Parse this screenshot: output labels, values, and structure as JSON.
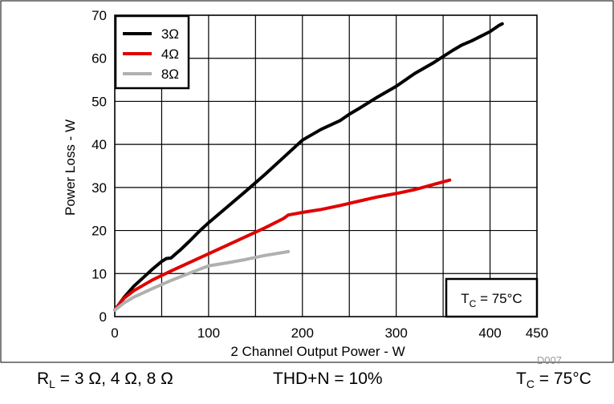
{
  "chart_data": {
    "type": "line",
    "title": "",
    "xlabel": "2 Channel Output Power - W",
    "ylabel": "Power Loss - W",
    "xlim": [
      0,
      450
    ],
    "ylim": [
      0,
      70
    ],
    "xticks": [
      0,
      100,
      200,
      300,
      400,
      450
    ],
    "yticks": [
      0,
      10,
      20,
      30,
      40,
      50,
      60,
      70
    ],
    "x_tick_labels": [
      "0",
      "100",
      "200",
      "300",
      "400",
      "450"
    ],
    "y_tick_labels": [
      "0",
      "10",
      "20",
      "30",
      "40",
      "50",
      "60",
      "70"
    ],
    "grid": true,
    "legend_position": "top-left",
    "series": [
      {
        "name": "3Ω",
        "color": "#000000",
        "x": [
          0,
          5,
          10,
          20,
          30,
          40,
          50,
          55,
          60,
          65,
          70,
          80,
          90,
          100,
          120,
          140,
          160,
          180,
          200,
          220,
          240,
          250,
          260,
          280,
          300,
          320,
          340,
          360,
          370,
          380,
          390,
          400,
          410,
          413
        ],
        "y": [
          1.5,
          3,
          4.5,
          7,
          9,
          11,
          12.8,
          13.5,
          13.6,
          14.6,
          15.5,
          17.6,
          19.8,
          21.8,
          25.5,
          29.2,
          33,
          37,
          41,
          43.5,
          45.5,
          47,
          48.3,
          51,
          53.5,
          56.5,
          59,
          61.8,
          63.1,
          64,
          65.1,
          66.2,
          67.7,
          68
        ]
      },
      {
        "name": "4Ω",
        "color": "#e00000",
        "x": [
          0,
          10,
          20,
          40,
          60,
          80,
          100,
          120,
          140,
          160,
          180,
          185,
          200,
          220,
          240,
          260,
          280,
          300,
          320,
          340,
          357
        ],
        "y": [
          1.5,
          4.3,
          6,
          8.5,
          10.6,
          12.6,
          14.6,
          16.6,
          18.6,
          20.6,
          22.8,
          23.6,
          24.2,
          24.9,
          25.8,
          26.8,
          27.8,
          28.6,
          29.5,
          30.7,
          31.7
        ]
      },
      {
        "name": "8Ω",
        "color": "#b0b0b0",
        "x": [
          0,
          10,
          20,
          40,
          60,
          80,
          100,
          120,
          140,
          160,
          185
        ],
        "y": [
          1.5,
          3.2,
          4.5,
          6.5,
          8.4,
          10.1,
          11.8,
          12.5,
          13.3,
          14.2,
          15.1
        ]
      }
    ],
    "annotation": "T_C = 75°C",
    "watermark": "D007"
  },
  "caption": {
    "left": [
      "R",
      "L",
      " = 3 Ω, 4 Ω, 8 Ω"
    ],
    "middle": "THD+N = 10%",
    "right": [
      "T",
      "C",
      " = 75°C"
    ]
  },
  "colors": {
    "frame": "#000000",
    "grid": "#000000",
    "background": "#ffffff"
  }
}
